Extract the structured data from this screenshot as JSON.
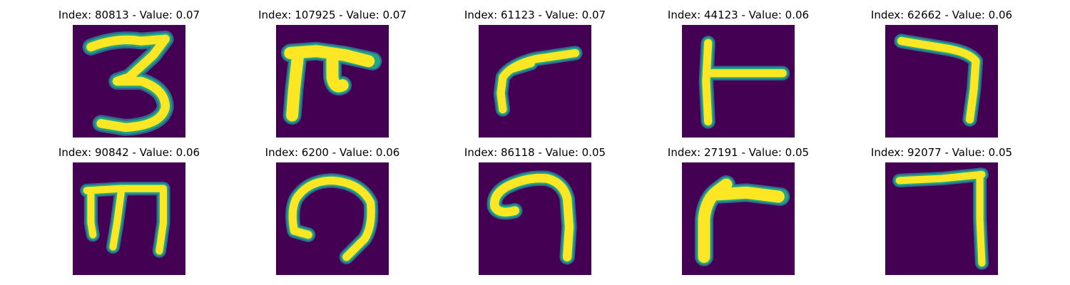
{
  "colors": {
    "background": "#440154",
    "outer_glow": "#31688e",
    "mid_glow": "#21a685",
    "stroke_core": "#fde725"
  },
  "panels": [
    {
      "title": "Index: 80813 - Value: 0.07",
      "glyph": "three"
    },
    {
      "title": "Index: 107925 - Value: 0.07",
      "glyph": "pi"
    },
    {
      "title": "Index: 61123 - Value: 0.07",
      "glyph": "gamma-slant"
    },
    {
      "title": "Index: 44123 - Value: 0.06",
      "glyph": "t-right"
    },
    {
      "title": "Index: 62662 - Value: 0.06",
      "glyph": "seven"
    },
    {
      "title": "Index: 90842 - Value: 0.06",
      "glyph": "m-shape"
    },
    {
      "title": "Index: 6200 - Value: 0.06",
      "glyph": "hook"
    },
    {
      "title": "Index: 86118 - Value: 0.05",
      "glyph": "curl-seven"
    },
    {
      "title": "Index: 27191 - Value: 0.05",
      "glyph": "gamma-thick"
    },
    {
      "title": "Index: 92077 - Value: 0.05",
      "glyph": "corner"
    }
  ]
}
